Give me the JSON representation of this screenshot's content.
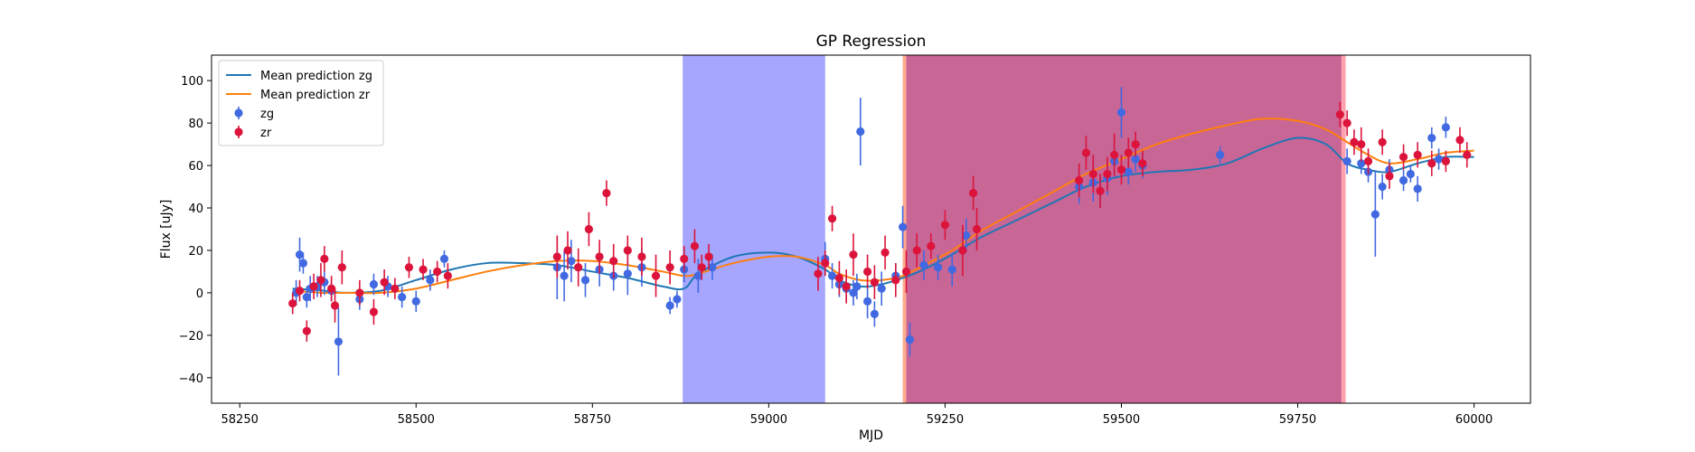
{
  "chart_data": {
    "type": "scatter",
    "title": "GP Regression",
    "xlabel": "MJD",
    "ylabel": "Flux [uJy]",
    "xlim": [
      58210,
      60080
    ],
    "ylim": [
      -52,
      112
    ],
    "xticks": [
      58250,
      58500,
      58750,
      59000,
      59250,
      59500,
      59750,
      60000
    ],
    "yticks": [
      -40,
      -20,
      0,
      20,
      40,
      60,
      80,
      100
    ],
    "grid": false,
    "legend": {
      "placement": "top-left",
      "entries": [
        {
          "label": "Mean prediction zg",
          "kind": "line",
          "color": "#1f77b4"
        },
        {
          "label": "Mean prediction zr",
          "kind": "line",
          "color": "#ff7f0e"
        },
        {
          "label": "zg",
          "kind": "errorbar",
          "color": "#4169e1"
        },
        {
          "label": "zr",
          "kind": "errorbar",
          "color": "#dc143c"
        }
      ]
    },
    "shaded_regions": [
      {
        "x0": 58878,
        "x1": 59080,
        "color": "#0000ff",
        "opacity": 0.35
      },
      {
        "x0": 59190,
        "x1": 59195,
        "color": "#ff4500",
        "opacity": 0.45
      },
      {
        "x0": 59195,
        "x1": 59812,
        "color": "#a40050",
        "opacity": 0.6
      },
      {
        "x0": 59812,
        "x1": 59818,
        "color": "#ff3050",
        "opacity": 0.45
      }
    ],
    "lines": [
      {
        "name": "Mean prediction zg",
        "color": "#1f77b4",
        "x": [
          58325,
          58370,
          58400,
          58450,
          58500,
          58550,
          58600,
          58650,
          58700,
          58750,
          58800,
          58850,
          58880,
          58900,
          58950,
          59000,
          59040,
          59080,
          59100,
          59130,
          59160,
          59190,
          59220,
          59260,
          59300,
          59350,
          59400,
          59450,
          59500,
          59550,
          59600,
          59650,
          59700,
          59750,
          59790,
          59820,
          59850,
          59880,
          59920,
          59960,
          60000
        ],
        "y": [
          2,
          1,
          0,
          1,
          6,
          11,
          14,
          14,
          13,
          10,
          7,
          3,
          2,
          9,
          17,
          19,
          17,
          11,
          6,
          3,
          4,
          7,
          11,
          18,
          26,
          34,
          42,
          50,
          55,
          57,
          58,
          61,
          68,
          73,
          70,
          61,
          58,
          57,
          61,
          64,
          64
        ]
      },
      {
        "name": "Mean prediction zr",
        "color": "#ff7f0e",
        "x": [
          58325,
          58370,
          58400,
          58450,
          58500,
          58550,
          58600,
          58650,
          58700,
          58750,
          58800,
          58850,
          58880,
          58900,
          58950,
          59000,
          59040,
          59080,
          59100,
          59130,
          59160,
          59190,
          59220,
          59260,
          59300,
          59350,
          59400,
          59450,
          59500,
          59550,
          59600,
          59650,
          59700,
          59750,
          59790,
          59820,
          59850,
          59880,
          59920,
          59960,
          60000
        ],
        "y": [
          1,
          0,
          0,
          0,
          2,
          6,
          10,
          13,
          15,
          15,
          13,
          10,
          8,
          9,
          14,
          17,
          17,
          13,
          9,
          6,
          6,
          8,
          13,
          20,
          29,
          38,
          47,
          56,
          63,
          70,
          75,
          79,
          82,
          81,
          77,
          71,
          65,
          61,
          63,
          66,
          67
        ]
      }
    ],
    "series": [
      {
        "name": "zg",
        "color": "#4169e1",
        "x": [
          58330,
          58335,
          58340,
          58345,
          58350,
          58360,
          58370,
          58380,
          58390,
          58420,
          58440,
          58460,
          58480,
          58500,
          58520,
          58540,
          58700,
          58710,
          58720,
          58740,
          58760,
          58780,
          58800,
          58820,
          58860,
          58870,
          58880,
          58900,
          58920,
          59080,
          59090,
          59100,
          59110,
          59120,
          59125,
          59130,
          59140,
          59150,
          59160,
          59180,
          59190,
          59200,
          59220,
          59240,
          59260,
          59280,
          59440,
          59460,
          59470,
          59480,
          59490,
          59500,
          59510,
          59520,
          59530,
          59640,
          59820,
          59840,
          59850,
          59860,
          59870,
          59880,
          59900,
          59910,
          59920,
          59940,
          59950,
          59960
        ],
        "y": [
          0,
          18,
          14,
          -2,
          2,
          3,
          5,
          1,
          -23,
          -3,
          4,
          3,
          -2,
          -4,
          6,
          16,
          12,
          8,
          15,
          6,
          11,
          8,
          9,
          12,
          -6,
          -3,
          11,
          8,
          12,
          16,
          8,
          4,
          2,
          0,
          3,
          76,
          -4,
          -10,
          2,
          8,
          31,
          -22,
          13,
          12,
          11,
          27,
          50,
          52,
          48,
          54,
          62,
          85,
          57,
          63,
          60,
          65,
          62,
          61,
          57,
          37,
          50,
          58,
          53,
          56,
          49,
          73,
          63,
          78
        ],
        "err": [
          6,
          8,
          5,
          5,
          6,
          5,
          6,
          5,
          16,
          5,
          5,
          5,
          5,
          5,
          5,
          4,
          15,
          12,
          10,
          8,
          8,
          7,
          10,
          9,
          4,
          4,
          6,
          8,
          6,
          8,
          6,
          6,
          6,
          6,
          6,
          16,
          8,
          6,
          8,
          6,
          10,
          8,
          7,
          6,
          8,
          8,
          8,
          9,
          8,
          8,
          8,
          12,
          6,
          6,
          6,
          4,
          6,
          5,
          5,
          20,
          6,
          5,
          5,
          4,
          6,
          5,
          5,
          5
        ]
      },
      {
        "name": "zr",
        "color": "#dc143c",
        "x": [
          58325,
          58335,
          58345,
          58355,
          58365,
          58370,
          58380,
          58385,
          58395,
          58420,
          58440,
          58455,
          58470,
          58490,
          58510,
          58530,
          58545,
          58700,
          58715,
          58730,
          58745,
          58760,
          58770,
          58780,
          58800,
          58820,
          58840,
          58860,
          58880,
          58895,
          58905,
          58915,
          59070,
          59080,
          59090,
          59100,
          59110,
          59120,
          59140,
          59150,
          59165,
          59180,
          59195,
          59210,
          59230,
          59250,
          59275,
          59290,
          59295,
          59440,
          59450,
          59460,
          59470,
          59480,
          59490,
          59500,
          59510,
          59520,
          59530,
          59810,
          59820,
          59830,
          59840,
          59850,
          59870,
          59880,
          59900,
          59920,
          59940,
          59960,
          59980,
          59990
        ],
        "y": [
          -5,
          1,
          -18,
          3,
          6,
          16,
          2,
          -6,
          12,
          0,
          -9,
          5,
          2,
          12,
          11,
          10,
          8,
          17,
          20,
          12,
          30,
          17,
          47,
          15,
          20,
          17,
          8,
          12,
          16,
          22,
          12,
          17,
          9,
          14,
          35,
          7,
          3,
          18,
          10,
          5,
          19,
          6,
          10,
          20,
          22,
          32,
          20,
          47,
          30,
          53,
          66,
          56,
          48,
          56,
          65,
          58,
          66,
          70,
          61,
          84,
          80,
          71,
          70,
          62,
          71,
          55,
          64,
          65,
          61,
          62,
          72,
          65
        ],
        "err": [
          5,
          5,
          5,
          6,
          8,
          6,
          6,
          8,
          8,
          6,
          6,
          6,
          5,
          5,
          5,
          5,
          6,
          10,
          9,
          9,
          8,
          8,
          6,
          8,
          7,
          9,
          10,
          8,
          6,
          8,
          6,
          6,
          8,
          6,
          6,
          8,
          8,
          10,
          8,
          8,
          8,
          8,
          10,
          8,
          6,
          7,
          12,
          8,
          10,
          8,
          8,
          9,
          8,
          8,
          10,
          7,
          7,
          6,
          6,
          6,
          6,
          6,
          8,
          6,
          6,
          6,
          6,
          6,
          6,
          5,
          6,
          6
        ]
      }
    ]
  }
}
